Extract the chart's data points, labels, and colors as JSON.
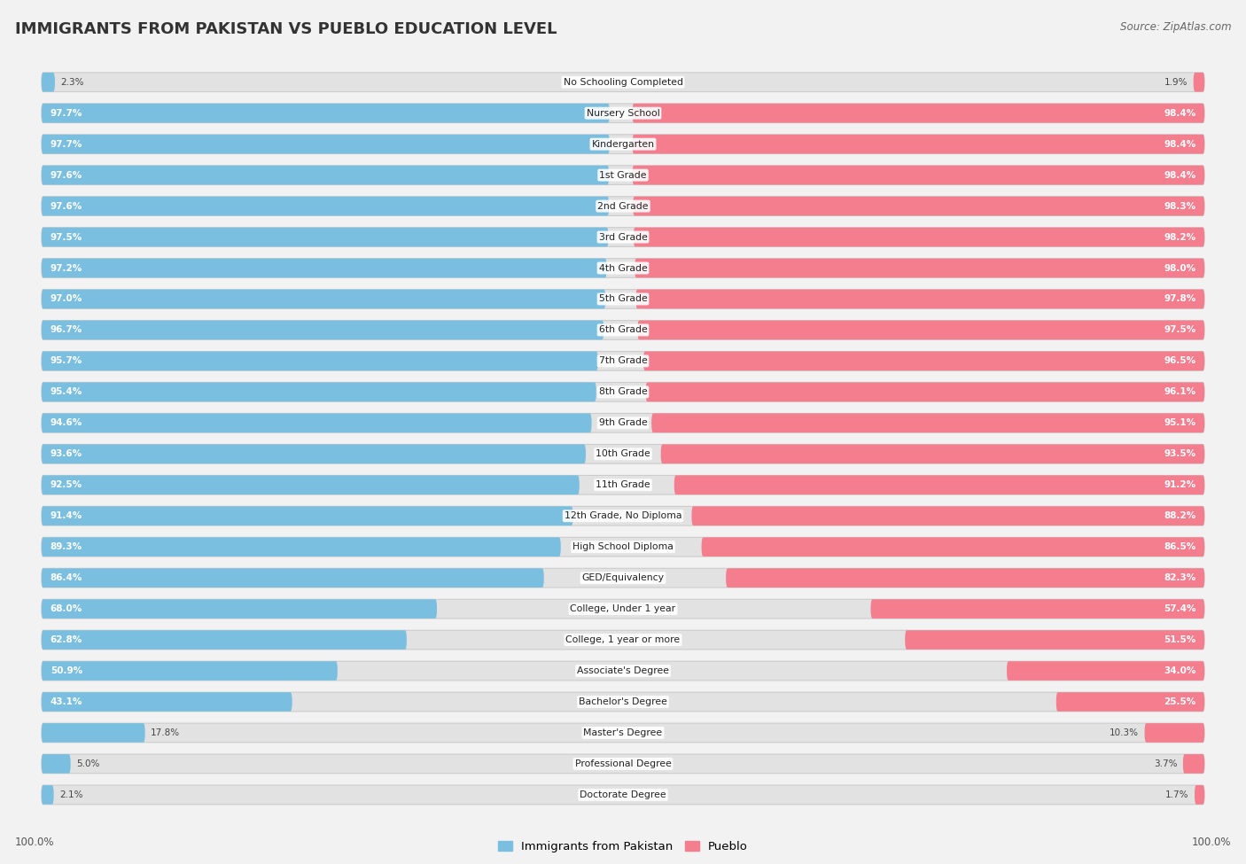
{
  "title": "IMMIGRANTS FROM PAKISTAN VS PUEBLO EDUCATION LEVEL",
  "source": "Source: ZipAtlas.com",
  "categories": [
    "No Schooling Completed",
    "Nursery School",
    "Kindergarten",
    "1st Grade",
    "2nd Grade",
    "3rd Grade",
    "4th Grade",
    "5th Grade",
    "6th Grade",
    "7th Grade",
    "8th Grade",
    "9th Grade",
    "10th Grade",
    "11th Grade",
    "12th Grade, No Diploma",
    "High School Diploma",
    "GED/Equivalency",
    "College, Under 1 year",
    "College, 1 year or more",
    "Associate's Degree",
    "Bachelor's Degree",
    "Master's Degree",
    "Professional Degree",
    "Doctorate Degree"
  ],
  "pakistan_values": [
    2.3,
    97.7,
    97.7,
    97.6,
    97.6,
    97.5,
    97.2,
    97.0,
    96.7,
    95.7,
    95.4,
    94.6,
    93.6,
    92.5,
    91.4,
    89.3,
    86.4,
    68.0,
    62.8,
    50.9,
    43.1,
    17.8,
    5.0,
    2.1
  ],
  "pueblo_values": [
    1.9,
    98.4,
    98.4,
    98.4,
    98.3,
    98.2,
    98.0,
    97.8,
    97.5,
    96.5,
    96.1,
    95.1,
    93.5,
    91.2,
    88.2,
    86.5,
    82.3,
    57.4,
    51.5,
    34.0,
    25.5,
    10.3,
    3.7,
    1.7
  ],
  "pakistan_color": "#7bbfe0",
  "pueblo_color": "#f47d8e",
  "background_color": "#f2f2f2",
  "bar_bg_color": "#e2e2e2",
  "legend_pakistan": "Immigrants from Pakistan",
  "legend_pueblo": "Pueblo",
  "axis_label_value": "100.0%"
}
